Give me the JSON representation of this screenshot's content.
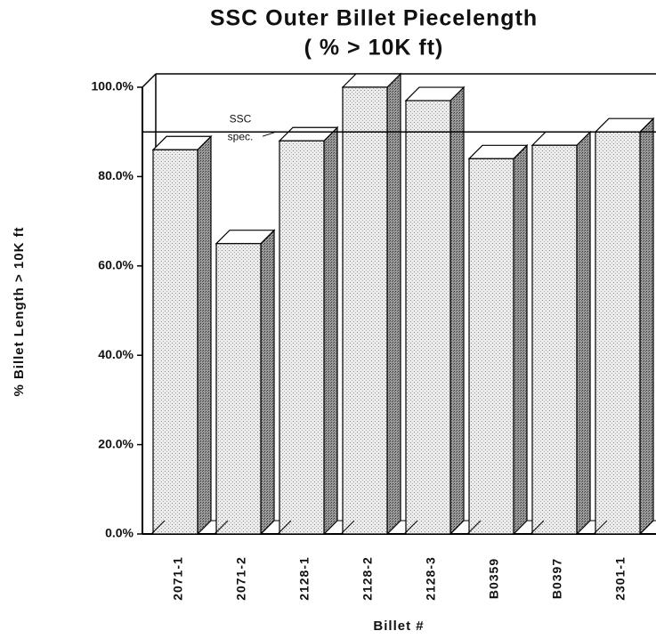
{
  "chart_data": {
    "type": "bar3d",
    "title": "SSC  Outer  Billet  Piecelength",
    "subtitle": "( % > 10K ft)",
    "x_label": "Billet  #",
    "y_label": "% Billet Length > 10K ft",
    "categories": [
      "2071-1",
      "2071-2",
      "2128-1",
      "2128-2",
      "2128-3",
      "B0359",
      "B0397",
      "2301-1"
    ],
    "values": [
      86,
      65,
      88,
      100,
      97,
      84,
      87,
      90
    ],
    "ylim": [
      0,
      100
    ],
    "yticks": [
      {
        "value": 0,
        "label": "0.0%"
      },
      {
        "value": 20,
        "label": "20.0%"
      },
      {
        "value": 40,
        "label": "40.0%"
      },
      {
        "value": 60,
        "label": "60.0%"
      },
      {
        "value": 80,
        "label": "80.0%"
      },
      {
        "value": 100,
        "label": "100.0%"
      }
    ],
    "reference_line": {
      "value": 90,
      "label": [
        "SSC",
        "spec."
      ]
    },
    "grid": false
  }
}
